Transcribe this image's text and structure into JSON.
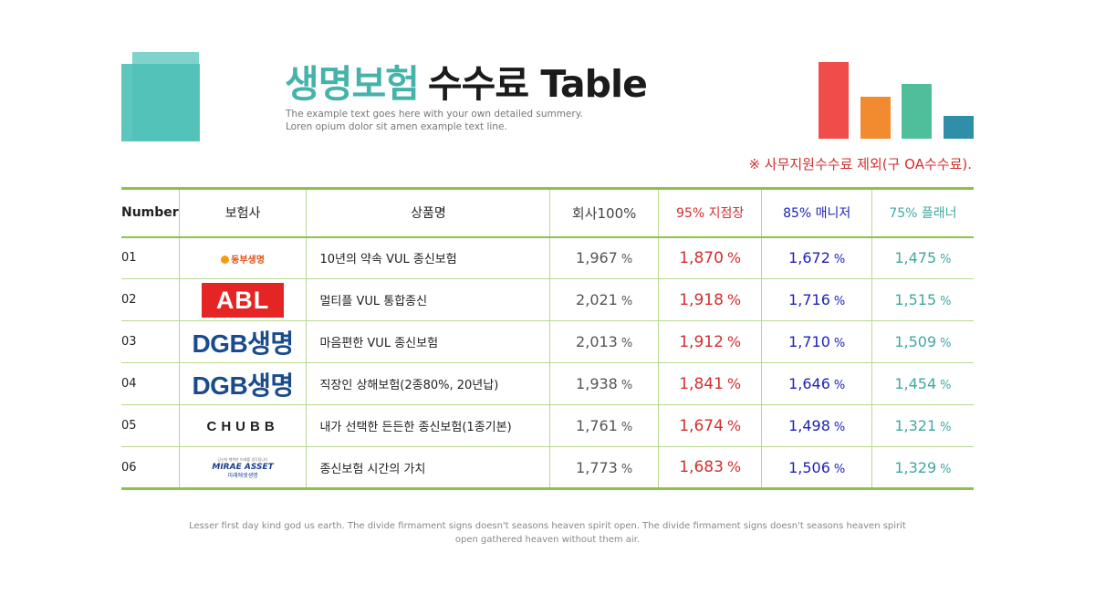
{
  "header": {
    "title_accent": "생명보험",
    "title_main": "수수료 Table",
    "subtitle_line1": "The example text goes here with your own detailed summery.",
    "subtitle_line2": "Loren opium dolor sit amen example text line.",
    "note": "※ 사무지원수수료 제외(구 OA수수료)."
  },
  "mini_bars": [
    {
      "color": "#ef4c4a",
      "level": 1.0
    },
    {
      "color": "#f28b30",
      "level": 0.55
    },
    {
      "color": "#4fbf9b",
      "level": 0.72
    },
    {
      "color": "#2f8ea8",
      "level": 0.3
    }
  ],
  "table": {
    "headers": {
      "number": "Number",
      "insurer": "보험사",
      "product": "상품명",
      "v1": "회사100%",
      "v2": "95% 지점장",
      "v3": "85% 매니저",
      "v4": "75% 플래너"
    },
    "percent_sign": "%",
    "rows": [
      {
        "number": "01",
        "insurer": "동부생명",
        "logo": "dongbu-logo",
        "product": "10년의 약속 VUL 종신보험",
        "v1": "1,967",
        "v2": "1,870",
        "v3": "1,672",
        "v4": "1,475"
      },
      {
        "number": "02",
        "insurer": "ABL",
        "logo": "abl-logo",
        "product": "멀티플 VUL 통합종신",
        "v1": "2,021",
        "v2": "1,918",
        "v3": "1,716",
        "v4": "1,515"
      },
      {
        "number": "03",
        "insurer": "DGB생명",
        "logo": "dgb-logo",
        "product": "마음편한 VUL 종신보험",
        "v1": "2,013",
        "v2": "1,912",
        "v3": "1,710",
        "v4": "1,509"
      },
      {
        "number": "04",
        "insurer": "DGB생명",
        "logo": "dgb-logo",
        "product": "직장인 상해보험(2종80%, 20년납)",
        "v1": "1,938",
        "v2": "1,841",
        "v3": "1,646",
        "v4": "1,454"
      },
      {
        "number": "05",
        "insurer": "CHUBB",
        "logo": "chubb-logo",
        "product": "내가 선택한 든든한 종신보험(1종기본)",
        "v1": "1,761",
        "v2": "1,674",
        "v3": "1,498",
        "v4": "1,321"
      },
      {
        "number": "06",
        "insurer": "MIRAE ASSET",
        "insurer_sub": "미래에셋생명",
        "insurer_tagline": "당신의 행복한 미래를 생각합니다",
        "logo": "mirae-asset-logo",
        "product": "종신보험 시간의 가치",
        "v1": "1,773",
        "v2": "1,683",
        "v3": "1,506",
        "v4": "1,329"
      }
    ]
  },
  "footer": {
    "line1": "Lesser first day kind god us earth. The divide firmament signs doesn't seasons heaven spirit open. The divide firmament signs doesn't seasons heaven spirit",
    "line2": "open gathered heaven without them air."
  }
}
